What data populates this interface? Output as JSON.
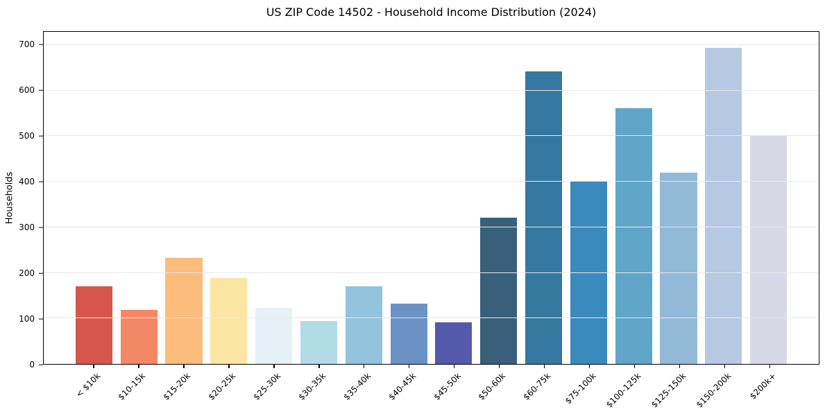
{
  "chart_data": {
    "type": "bar",
    "title": "US ZIP Code 14502 - Household Income Distribution (2024)",
    "xlabel": "",
    "ylabel": "Households",
    "categories": [
      "< $10k",
      "$10-15k",
      "$15-20k",
      "$20-25k",
      "$25-30k",
      "$30-35k",
      "$35-40k",
      "$40-45k",
      "$45-50k",
      "$50-60k",
      "$60-75k",
      "$75-100k",
      "$100-125k",
      "$125-150k",
      "$150-200k",
      "$200k+"
    ],
    "values": [
      170,
      118,
      233,
      188,
      124,
      94,
      171,
      133,
      91,
      321,
      643,
      400,
      561,
      420,
      694,
      500
    ],
    "bar_colors": [
      "#d6564e",
      "#f48866",
      "#fcbc7c",
      "#fde5a4",
      "#e5f1f5",
      "#b1dbe7",
      "#93c3dd",
      "#6b92c4",
      "#5459ab",
      "#38607a",
      "#35789f",
      "#3a8abd",
      "#5fa6c8",
      "#93b9d8",
      "#b7c8e2",
      "#d7d9e6"
    ],
    "ylim": [
      0,
      729
    ],
    "yticks": [
      0,
      100,
      200,
      300,
      400,
      500,
      600,
      700
    ],
    "grid": "horizontal",
    "gridline_color": "#e8e8e8",
    "legend": "none",
    "x_tick_rotation_deg": 45
  }
}
